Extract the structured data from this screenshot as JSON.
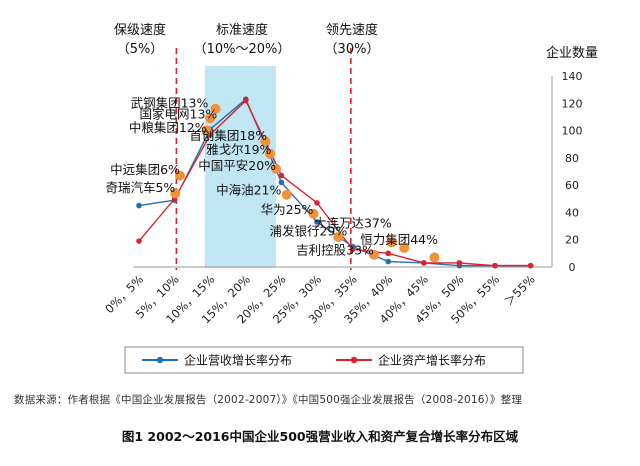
{
  "zones": {
    "conservative": {
      "title": "保级速度",
      "range": "（5%）"
    },
    "standard": {
      "title": "标准速度",
      "range": "（10%～20%）"
    },
    "leading": {
      "title": "领先速度",
      "range": "（30%）"
    }
  },
  "colors": {
    "revenue": "#1f6fb5",
    "asset": "#e0202a",
    "company_dot": "#f0923a",
    "zone_fill": "#bfe6f2",
    "zone_line": "#e0202a"
  },
  "chart_data": {
    "type": "line",
    "ylabel": "企业数量",
    "ylim": [
      0,
      140
    ],
    "yticks": [
      0,
      20,
      40,
      60,
      80,
      100,
      120,
      140
    ],
    "categories": [
      "0%，5%",
      "5%，10%",
      "10%，15%",
      "15%，20%",
      "20%，25%",
      "25%，30%",
      "30%，35%",
      "35%，40%",
      "40%，45%",
      "45%，50%",
      "50%，55%",
      "＞55%"
    ],
    "series": [
      {
        "name": "企业营收增长率分布",
        "color": "#1f6fb5",
        "values": [
          45,
          49,
          101,
          123,
          62,
          33,
          15,
          4,
          3,
          1,
          1,
          1
        ]
      },
      {
        "name": "企业资产增长率分布",
        "color": "#e0202a",
        "values": [
          19,
          50,
          97,
          122,
          67,
          47,
          13,
          10,
          3,
          3,
          1,
          1
        ]
      }
    ],
    "annotations": [
      {
        "text": "武钢集团13%",
        "x": 1.95,
        "y": 117
      },
      {
        "text": "国家电网13%",
        "x": 2.2,
        "y": 109
      },
      {
        "text": "中粮集团12%",
        "x": 1.9,
        "y": 99
      },
      {
        "text": "中远集团6%",
        "x": 1.15,
        "y": 68
      },
      {
        "text": "奇瑞汽车5%",
        "x": 1.02,
        "y": 55
      },
      {
        "text": "首创集团18%",
        "x": 3.6,
        "y": 93
      },
      {
        "text": "雅戈尔19%",
        "x": 3.72,
        "y": 83
      },
      {
        "text": "中国平安20%",
        "x": 3.85,
        "y": 71
      },
      {
        "text": "中海油21%",
        "x": 4.0,
        "y": 53
      },
      {
        "text": "华为25%",
        "x": 4.9,
        "y": 39
      },
      {
        "text": "浦发银行29%",
        "x": 5.85,
        "y": 23
      },
      {
        "text": "吉利控股33%",
        "x": 6.6,
        "y": 9
      },
      {
        "text": "大连万达37%",
        "x": 7.1,
        "y": 29
      },
      {
        "text": "恒力集团44%",
        "x": 8.4,
        "y": 17
      }
    ],
    "company_points": [
      {
        "x": 1.02,
        "y": 54
      },
      {
        "x": 1.15,
        "y": 67
      },
      {
        "x": 1.9,
        "y": 100
      },
      {
        "x": 2.0,
        "y": 109
      },
      {
        "x": 2.15,
        "y": 116
      },
      {
        "x": 3.55,
        "y": 92
      },
      {
        "x": 3.68,
        "y": 83
      },
      {
        "x": 3.85,
        "y": 72
      },
      {
        "x": 4.15,
        "y": 53
      },
      {
        "x": 4.9,
        "y": 39
      },
      {
        "x": 5.6,
        "y": 22
      },
      {
        "x": 6.6,
        "y": 9
      },
      {
        "x": 7.1,
        "y": 18
      },
      {
        "x": 7.45,
        "y": 14
      },
      {
        "x": 8.3,
        "y": 7
      }
    ]
  },
  "legend": {
    "revenue_label": "企业营收增长率分布",
    "asset_label": "企业资产增长率分布"
  },
  "note": "数据来源：作者根据《中国企业发展报告（2002-2007）》《中国500强企业发展报告（2008-2016）》整理",
  "caption": "图1  2002～2016中国企业500强营业收入和资产复合增长率分布区域"
}
